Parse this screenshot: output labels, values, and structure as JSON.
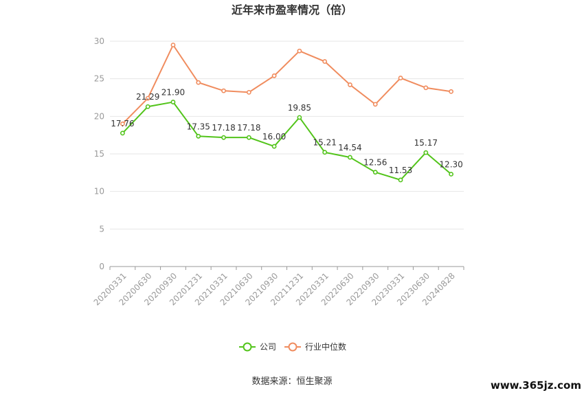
{
  "chart_data": {
    "type": "line",
    "title": "近年来市盈率情况（倍）",
    "categories": [
      "20200331",
      "20200630",
      "20200930",
      "20201231",
      "20210331",
      "20210630",
      "20210930",
      "20211231",
      "20220331",
      "20220630",
      "20220930",
      "20230331",
      "20230630",
      "20240828"
    ],
    "series": [
      {
        "name": "公司",
        "color": "#52c41a",
        "values": [
          17.76,
          21.29,
          21.9,
          17.35,
          17.18,
          17.18,
          16.0,
          19.85,
          15.21,
          14.54,
          12.56,
          11.53,
          15.17,
          12.3
        ],
        "labels": [
          "17.76",
          "21.29",
          "21.90",
          "17.35",
          "17.18",
          "17.18",
          "16.00",
          "19.85",
          "15.21",
          "14.54",
          "12.56",
          "11.53",
          "15.17",
          "12.30"
        ]
      },
      {
        "name": "行业中位数",
        "color": "#f08c5e",
        "values": [
          19.0,
          22.4,
          29.5,
          24.5,
          23.4,
          23.2,
          25.4,
          28.7,
          27.3,
          24.2,
          21.6,
          25.1,
          23.8,
          23.3
        ]
      }
    ],
    "ylim": [
      0,
      30
    ],
    "yticks": [
      "0",
      "5",
      "10",
      "15",
      "20",
      "25",
      "30"
    ],
    "xlabel": "",
    "ylabel": "",
    "grid": true,
    "legend": "bottom-center"
  },
  "source": "数据来源：恒生聚源",
  "watermark": "www.365jz.com"
}
